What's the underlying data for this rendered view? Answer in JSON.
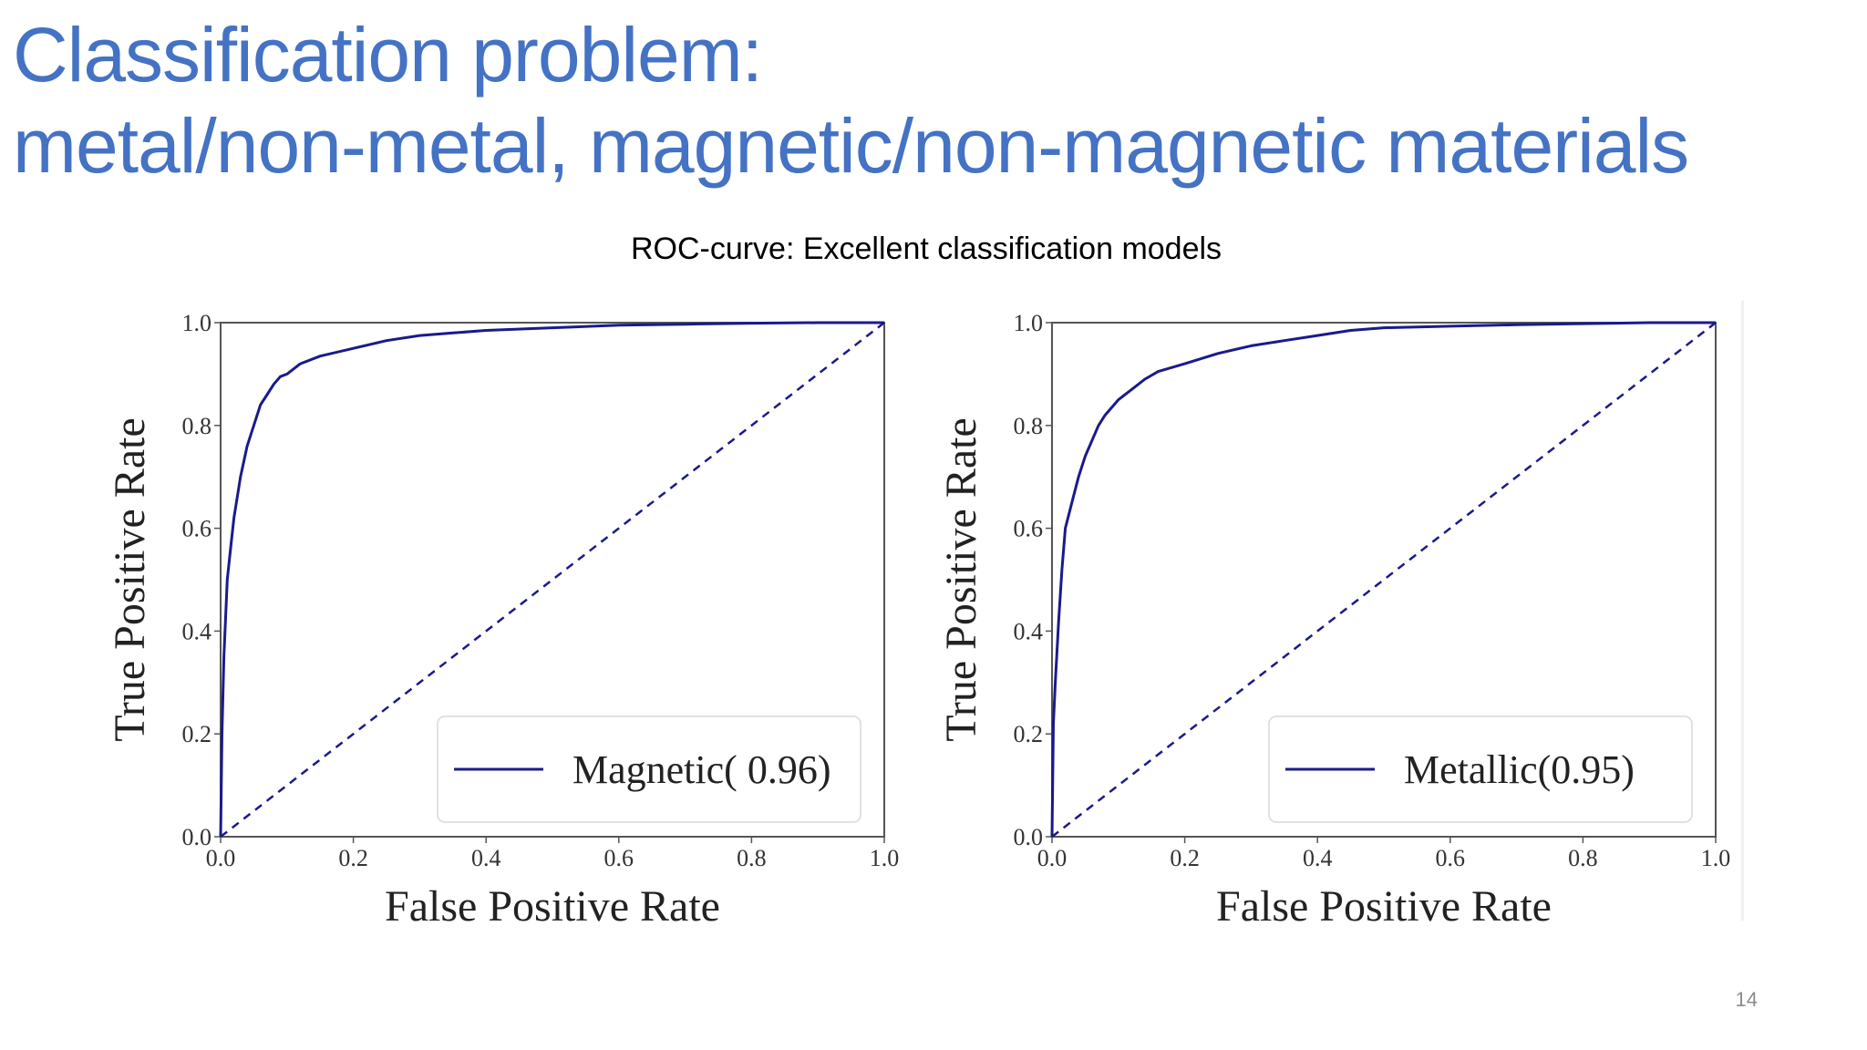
{
  "slide": {
    "title_line1": "Classification problem:",
    "title_line2": "metal/non-metal, magnetic/non-magnetic materials",
    "subtitle": "ROC-curve: Excellent classification models",
    "page_number": "14"
  },
  "colors": {
    "title": "#4472c4",
    "curve": "#1a1a8c",
    "frame": "#555555"
  },
  "chart_data": [
    {
      "type": "line",
      "xlabel": "False Positive Rate",
      "ylabel": "True Positive Rate",
      "xlim": [
        0,
        1
      ],
      "ylim": [
        0,
        1
      ],
      "xticks": [
        "0.0",
        "0.2",
        "0.4",
        "0.6",
        "0.8",
        "1.0"
      ],
      "yticks": [
        "0.0",
        "0.2",
        "0.4",
        "0.6",
        "0.8",
        "1.0"
      ],
      "legend_position": "lower right",
      "series": [
        {
          "name": "Magnetic( 0.96)",
          "style": "solid",
          "x": [
            0,
            0.002,
            0.005,
            0.01,
            0.015,
            0.02,
            0.025,
            0.03,
            0.04,
            0.05,
            0.06,
            0.07,
            0.08,
            0.09,
            0.1,
            0.12,
            0.15,
            0.2,
            0.25,
            0.3,
            0.35,
            0.4,
            0.5,
            0.6,
            0.7,
            0.8,
            0.9,
            1.0
          ],
          "y": [
            0,
            0.2,
            0.35,
            0.5,
            0.56,
            0.62,
            0.66,
            0.7,
            0.76,
            0.8,
            0.84,
            0.86,
            0.88,
            0.895,
            0.9,
            0.92,
            0.935,
            0.95,
            0.965,
            0.975,
            0.98,
            0.985,
            0.99,
            0.995,
            0.997,
            0.999,
            1.0,
            1.0
          ]
        },
        {
          "name": "",
          "style": "dashed",
          "x": [
            0,
            1
          ],
          "y": [
            0,
            1
          ]
        }
      ]
    },
    {
      "type": "line",
      "xlabel": "False Positive Rate",
      "ylabel": "True Positive Rate",
      "xlim": [
        0,
        1
      ],
      "ylim": [
        0,
        1
      ],
      "xticks": [
        "0.0",
        "0.2",
        "0.4",
        "0.6",
        "0.8",
        "1.0"
      ],
      "yticks": [
        "0.0",
        "0.2",
        "0.4",
        "0.6",
        "0.8",
        "1.0"
      ],
      "legend_position": "lower right",
      "series": [
        {
          "name": "Metallic(0.95)",
          "style": "solid",
          "x": [
            0,
            0.002,
            0.005,
            0.01,
            0.015,
            0.02,
            0.03,
            0.04,
            0.05,
            0.06,
            0.07,
            0.08,
            0.1,
            0.12,
            0.14,
            0.16,
            0.2,
            0.25,
            0.3,
            0.35,
            0.4,
            0.45,
            0.5,
            0.6,
            0.7,
            0.8,
            0.9,
            1.0
          ],
          "y": [
            0,
            0.22,
            0.3,
            0.42,
            0.52,
            0.6,
            0.65,
            0.7,
            0.74,
            0.77,
            0.8,
            0.82,
            0.85,
            0.87,
            0.89,
            0.905,
            0.92,
            0.94,
            0.955,
            0.965,
            0.975,
            0.985,
            0.99,
            0.993,
            0.996,
            0.998,
            1.0,
            1.0
          ]
        },
        {
          "name": "",
          "style": "dashed",
          "x": [
            0,
            1
          ],
          "y": [
            0,
            1
          ]
        }
      ]
    }
  ]
}
